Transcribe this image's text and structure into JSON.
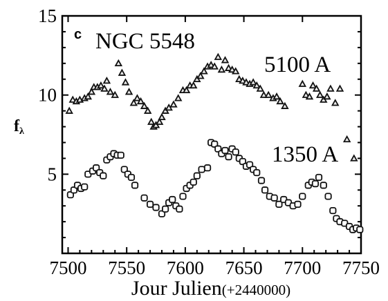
{
  "chart_data": {
    "type": "scatter",
    "panel_label": "c",
    "object_label": "NGC 5548",
    "xlabel": "Jour Julien",
    "xlabel_suffix": "(+2440000)",
    "ylabel": "f",
    "ylabel_sub": "λ",
    "xlim": [
      7495,
      7750
    ],
    "ylim": [
      0,
      15
    ],
    "xticks": [
      7500,
      7550,
      7600,
      7650,
      7700,
      7750
    ],
    "xtick_labels": [
      "7500",
      "7550",
      "7600",
      "7650",
      "7700",
      "7750"
    ],
    "yticks": [
      5,
      10,
      15
    ],
    "ytick_labels": [
      "5",
      "10",
      "15"
    ],
    "series": [
      {
        "name": "5100 A",
        "marker": "triangle",
        "x": [
          7501,
          7504,
          7507,
          7510,
          7514,
          7517,
          7520,
          7522,
          7525,
          7528,
          7531,
          7533,
          7536,
          7540,
          7543,
          7546,
          7549,
          7552,
          7556,
          7559,
          7562,
          7565,
          7568,
          7571,
          7573,
          7575,
          7578,
          7580,
          7583,
          7586,
          7590,
          7594,
          7598,
          7601,
          7604,
          7607,
          7610,
          7613,
          7616,
          7619,
          7622,
          7625,
          7628,
          7631,
          7634,
          7637,
          7640,
          7643,
          7646,
          7649,
          7652,
          7655,
          7658,
          7661,
          7664,
          7667,
          7671,
          7675,
          7678,
          7681,
          7685,
          7700,
          7703,
          7706,
          7709,
          7712,
          7715,
          7718,
          7721,
          7724,
          7728,
          7732,
          7738,
          7744
        ],
        "y": [
          9.0,
          9.7,
          9.6,
          9.7,
          9.8,
          9.9,
          10.2,
          10.5,
          10.5,
          10.6,
          10.4,
          10.9,
          10.2,
          10.0,
          12.0,
          11.4,
          10.8,
          10.2,
          9.5,
          9.8,
          9.6,
          9.3,
          9.0,
          8.3,
          8.0,
          8.1,
          8.3,
          8.6,
          9.0,
          9.2,
          9.4,
          9.8,
          10.3,
          10.3,
          10.6,
          10.6,
          11.0,
          11.2,
          11.5,
          11.8,
          11.9,
          11.8,
          12.4,
          11.6,
          12.2,
          11.7,
          11.6,
          11.5,
          11.0,
          10.9,
          10.8,
          10.7,
          10.8,
          10.6,
          10.4,
          10.0,
          10.0,
          9.8,
          9.9,
          9.6,
          9.3,
          10.7,
          10.0,
          9.9,
          10.6,
          10.4,
          10.0,
          9.7,
          9.9,
          10.4,
          9.5,
          10.4,
          7.2,
          6.0
        ]
      },
      {
        "name": "1350 A",
        "marker": "square",
        "x": [
          7502,
          7505,
          7508,
          7511,
          7514,
          7517,
          7521,
          7524,
          7527,
          7530,
          7533,
          7536,
          7539,
          7542,
          7545,
          7548,
          7551,
          7554,
          7557,
          7565,
          7570,
          7575,
          7580,
          7583,
          7586,
          7589,
          7592,
          7595,
          7598,
          7601,
          7604,
          7607,
          7610,
          7614,
          7619,
          7622,
          7625,
          7628,
          7631,
          7634,
          7637,
          7640,
          7643,
          7646,
          7649,
          7652,
          7655,
          7658,
          7661,
          7665,
          7668,
          7672,
          7676,
          7680,
          7684,
          7688,
          7692,
          7696,
          7700,
          7705,
          7708,
          7711,
          7714,
          7718,
          7722,
          7726,
          7729,
          7732,
          7736,
          7740,
          7743,
          7746,
          7749
        ],
        "y": [
          3.7,
          4.0,
          4.3,
          4.1,
          4.2,
          5.0,
          5.2,
          5.4,
          5.1,
          4.9,
          5.9,
          6.1,
          6.3,
          6.2,
          6.2,
          5.3,
          5.0,
          4.8,
          4.3,
          3.5,
          3.1,
          2.9,
          2.5,
          2.8,
          3.2,
          3.4,
          3.0,
          2.8,
          3.6,
          4.1,
          4.3,
          4.5,
          4.9,
          5.3,
          5.4,
          7.0,
          6.9,
          6.6,
          6.3,
          6.5,
          6.1,
          6.6,
          6.4,
          6.0,
          5.8,
          5.5,
          5.6,
          5.3,
          5.1,
          4.6,
          4.0,
          3.6,
          3.5,
          3.1,
          3.4,
          3.2,
          3.0,
          3.1,
          3.6,
          4.3,
          4.5,
          4.4,
          4.8,
          4.3,
          3.6,
          2.7,
          2.2,
          2.0,
          1.9,
          1.7,
          1.5,
          1.6,
          1.5
        ]
      }
    ]
  }
}
